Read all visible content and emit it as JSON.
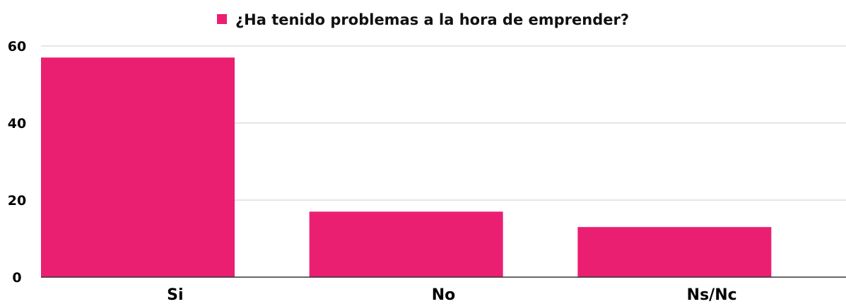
{
  "chart_data": {
    "type": "bar",
    "title": "",
    "xlabel": "",
    "ylabel": "",
    "categories": [
      "Si",
      "No",
      "Ns/Nc"
    ],
    "series": [
      {
        "name": "¿Ha tenido problemas a la hora de emprender?",
        "values": [
          57,
          17,
          13
        ]
      }
    ],
    "ylim": [
      0,
      60
    ],
    "yticks": [
      0,
      20,
      40,
      60
    ],
    "grid": true,
    "legend_position": "top-center",
    "colors": {
      "bar": "#EB1F72",
      "grid": "#cccccc",
      "axis": "#333333"
    }
  }
}
